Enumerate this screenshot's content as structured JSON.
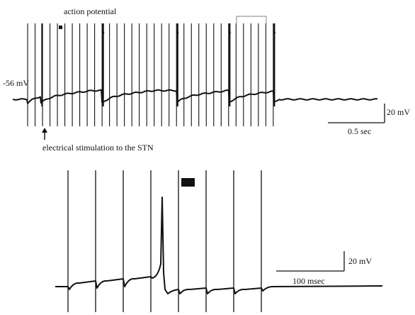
{
  "chart_data": [
    {
      "type": "line",
      "panel": "top",
      "title": "",
      "annotations": {
        "action_potential": "action potential",
        "resting_potential": "-56 mV",
        "stimulus": "electrical stimulation to the STN"
      },
      "scale_bar": {
        "voltage_label": "20 mV",
        "time_label": "0.5 sec",
        "voltage_mV": 20,
        "time_s": 0.5
      },
      "resting_potential_mV": -56,
      "stimulus_count": 34,
      "stimulus_interval_s": 0.1,
      "stimulus_start_s": 0.2,
      "trace_duration_s": 4.9,
      "action_potential_times_s": [
        0.38,
        1.2,
        2.2,
        2.9,
        3.5
      ]
    },
    {
      "type": "line",
      "panel": "bottom",
      "title": "",
      "scale_bar": {
        "voltage_label": "20 mV",
        "time_label": "100 msec",
        "voltage_mV": 20,
        "time_ms": 100
      },
      "stimulus_count": 8,
      "stimulus_interval_ms": 100,
      "action_potential_after_stimulus": 4,
      "marker": "filled-rectangle"
    }
  ],
  "colors": {
    "trace": "#111111",
    "bracket": "#9a9a9a",
    "background": "#ffffff"
  }
}
